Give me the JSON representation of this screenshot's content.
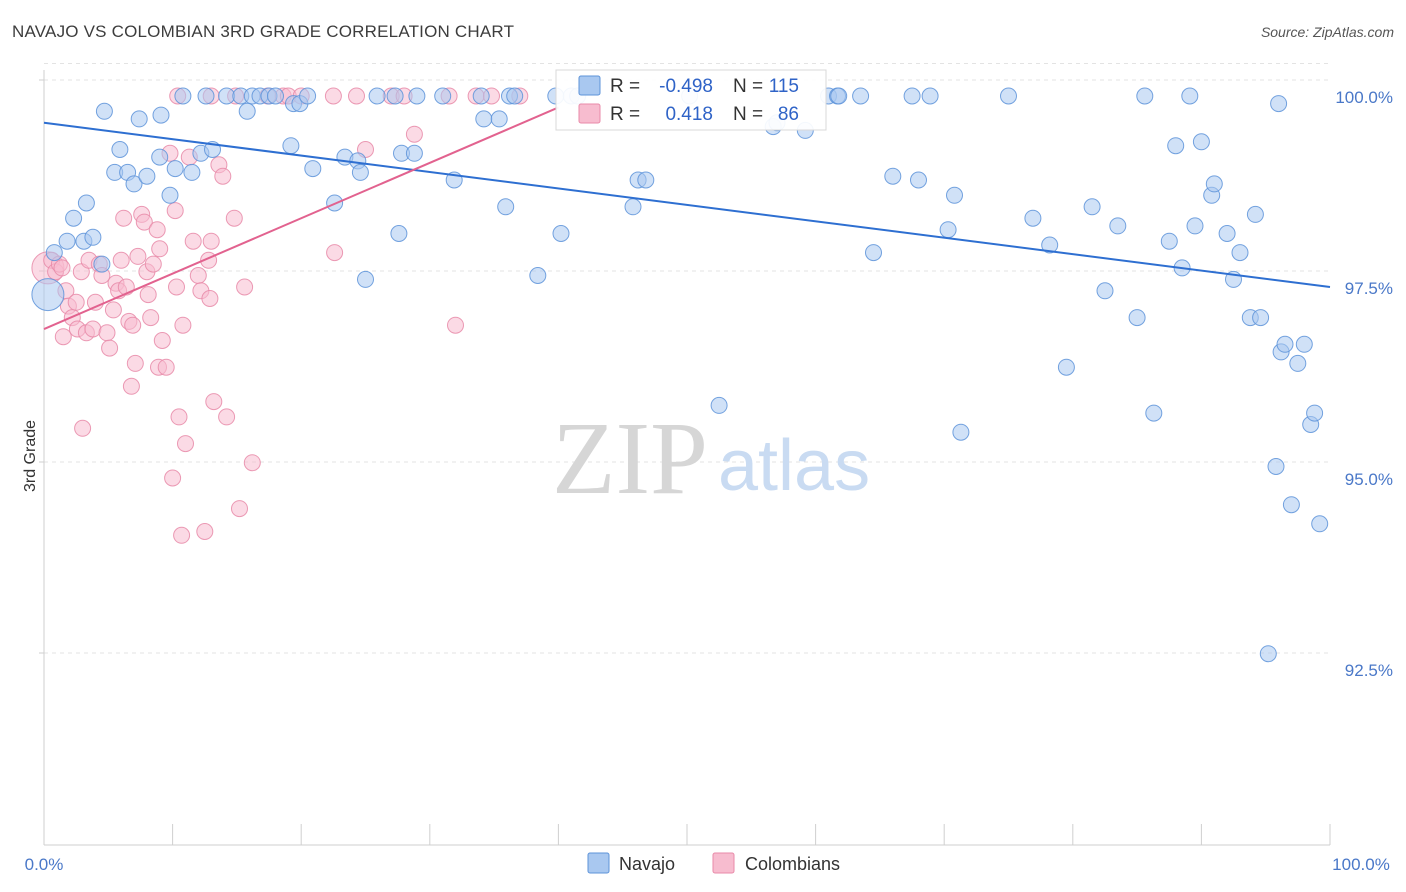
{
  "title": "NAVAJO VS COLOMBIAN 3RD GRADE CORRELATION CHART",
  "source": "Source: ZipAtlas.com",
  "watermark": {
    "zip": "ZIP",
    "atlas": "atlas"
  },
  "legend_box": {
    "rows": [
      {
        "r_label": "R =",
        "r_value": "-0.498",
        "n_label": "N =",
        "n_value": "115",
        "color": "#a9c8f0"
      },
      {
        "r_label": "R =",
        "r_value": "0.418",
        "n_label": "N =",
        "n_value": "86",
        "color": "#f5b3c8"
      }
    ]
  },
  "colors": {
    "navajo_fill": "#a9c8f0",
    "navajo_stroke": "#5d93d9",
    "navajo_line": "#2e6fd1",
    "colombian_fill": "#f7bccf",
    "colombian_stroke": "#e88aa8",
    "colombian_line": "#e2628f",
    "grid": "#e3e3e3",
    "tick_label": "#4a78c8"
  },
  "chart_data": {
    "type": "scatter",
    "title": "NAVAJO VS COLOMBIAN 3RD GRADE CORRELATION CHART",
    "xlabel": "",
    "ylabel": "3rd Grade",
    "xlim": [
      0,
      100
    ],
    "ylim": [
      90.2,
      100.4
    ],
    "y_ticks": [
      92.5,
      95.0,
      97.5,
      100.0
    ],
    "y_tick_labels": [
      "92.5%",
      "95.0%",
      "97.5%",
      "100.0%"
    ],
    "x_tick_labels": [
      "0.0%",
      "100.0%"
    ],
    "legend": [
      "Navajo",
      "Colombians"
    ],
    "series": [
      {
        "name": "Navajo",
        "trend": {
          "x": [
            0,
            100
          ],
          "y": [
            99.65,
            97.5
          ]
        },
        "points": [
          {
            "x": 0.3,
            "y": 97.4,
            "big": true
          },
          {
            "x": 0.8,
            "y": 97.95
          },
          {
            "x": 1.8,
            "y": 98.1
          },
          {
            "x": 2.3,
            "y": 98.4
          },
          {
            "x": 3.1,
            "y": 98.1
          },
          {
            "x": 3.3,
            "y": 98.6
          },
          {
            "x": 3.8,
            "y": 98.15
          },
          {
            "x": 4.5,
            "y": 97.8
          },
          {
            "x": 4.7,
            "y": 99.8
          },
          {
            "x": 5.5,
            "y": 99.0
          },
          {
            "x": 5.9,
            "y": 99.3
          },
          {
            "x": 6.5,
            "y": 99.0
          },
          {
            "x": 7.0,
            "y": 98.85
          },
          {
            "x": 7.4,
            "y": 99.7
          },
          {
            "x": 8.0,
            "y": 98.95
          },
          {
            "x": 9.0,
            "y": 99.2
          },
          {
            "x": 9.1,
            "y": 99.75
          },
          {
            "x": 9.8,
            "y": 98.7
          },
          {
            "x": 10.2,
            "y": 99.05
          },
          {
            "x": 10.8,
            "y": 100.0
          },
          {
            "x": 11.5,
            "y": 99.0
          },
          {
            "x": 12.2,
            "y": 99.25
          },
          {
            "x": 12.6,
            "y": 100.0
          },
          {
            "x": 13.1,
            "y": 99.3
          },
          {
            "x": 14.2,
            "y": 100.0
          },
          {
            "x": 15.3,
            "y": 100.0
          },
          {
            "x": 15.8,
            "y": 99.8
          },
          {
            "x": 16.2,
            "y": 100.0
          },
          {
            "x": 16.8,
            "y": 100.0
          },
          {
            "x": 17.5,
            "y": 100.0
          },
          {
            "x": 18.0,
            "y": 100.0
          },
          {
            "x": 19.2,
            "y": 99.35
          },
          {
            "x": 19.4,
            "y": 99.9
          },
          {
            "x": 19.9,
            "y": 99.9
          },
          {
            "x": 20.5,
            "y": 100.0
          },
          {
            "x": 20.9,
            "y": 99.05
          },
          {
            "x": 22.6,
            "y": 98.6
          },
          {
            "x": 23.4,
            "y": 99.2
          },
          {
            "x": 24.4,
            "y": 99.15
          },
          {
            "x": 24.6,
            "y": 99.0
          },
          {
            "x": 25.0,
            "y": 97.6
          },
          {
            "x": 25.9,
            "y": 100.0
          },
          {
            "x": 27.3,
            "y": 100.0
          },
          {
            "x": 27.6,
            "y": 98.2
          },
          {
            "x": 27.8,
            "y": 99.25
          },
          {
            "x": 28.8,
            "y": 99.25
          },
          {
            "x": 29.0,
            "y": 100.0
          },
          {
            "x": 31.0,
            "y": 100.0
          },
          {
            "x": 31.9,
            "y": 98.9
          },
          {
            "x": 34.0,
            "y": 100.0
          },
          {
            "x": 34.2,
            "y": 99.7
          },
          {
            "x": 35.4,
            "y": 99.7
          },
          {
            "x": 35.9,
            "y": 98.55
          },
          {
            "x": 36.2,
            "y": 100.0
          },
          {
            "x": 36.6,
            "y": 100.0
          },
          {
            "x": 38.4,
            "y": 97.65
          },
          {
            "x": 39.8,
            "y": 100.0
          },
          {
            "x": 40.2,
            "y": 98.2
          },
          {
            "x": 41.0,
            "y": 100.0
          },
          {
            "x": 41.5,
            "y": 100.0
          },
          {
            "x": 45.8,
            "y": 98.55
          },
          {
            "x": 46.2,
            "y": 98.9
          },
          {
            "x": 46.8,
            "y": 98.9
          },
          {
            "x": 50.2,
            "y": 100.0
          },
          {
            "x": 52.5,
            "y": 95.95
          },
          {
            "x": 56.7,
            "y": 99.6
          },
          {
            "x": 57.0,
            "y": 99.65
          },
          {
            "x": 61.0,
            "y": 100.0
          },
          {
            "x": 61.7,
            "y": 100.0
          },
          {
            "x": 61.8,
            "y": 100.0
          },
          {
            "x": 63.5,
            "y": 100.0
          },
          {
            "x": 64.5,
            "y": 97.95
          },
          {
            "x": 66.0,
            "y": 98.95
          },
          {
            "x": 67.5,
            "y": 100.0
          },
          {
            "x": 68.0,
            "y": 98.9
          },
          {
            "x": 68.9,
            "y": 100.0
          },
          {
            "x": 70.3,
            "y": 98.25
          },
          {
            "x": 70.8,
            "y": 98.7
          },
          {
            "x": 71.3,
            "y": 95.6
          },
          {
            "x": 75.0,
            "y": 100.0
          },
          {
            "x": 76.9,
            "y": 98.4
          },
          {
            "x": 78.2,
            "y": 98.05
          },
          {
            "x": 79.5,
            "y": 96.45
          },
          {
            "x": 81.5,
            "y": 98.55
          },
          {
            "x": 82.5,
            "y": 97.45
          },
          {
            "x": 83.5,
            "y": 98.3
          },
          {
            "x": 85.0,
            "y": 97.1
          },
          {
            "x": 85.6,
            "y": 100.0
          },
          {
            "x": 86.3,
            "y": 95.85
          },
          {
            "x": 87.5,
            "y": 98.1
          },
          {
            "x": 88.0,
            "y": 99.35
          },
          {
            "x": 88.5,
            "y": 97.75
          },
          {
            "x": 89.1,
            "y": 100.0
          },
          {
            "x": 89.5,
            "y": 98.3
          },
          {
            "x": 90.0,
            "y": 99.4
          },
          {
            "x": 90.8,
            "y": 98.7
          },
          {
            "x": 91.0,
            "y": 98.85
          },
          {
            "x": 92.0,
            "y": 98.2
          },
          {
            "x": 92.5,
            "y": 97.6
          },
          {
            "x": 93.0,
            "y": 97.95
          },
          {
            "x": 93.8,
            "y": 97.1
          },
          {
            "x": 94.2,
            "y": 98.45
          },
          {
            "x": 94.6,
            "y": 97.1
          },
          {
            "x": 95.2,
            "y": 92.7
          },
          {
            "x": 95.8,
            "y": 95.15
          },
          {
            "x": 96.2,
            "y": 96.65
          },
          {
            "x": 96.5,
            "y": 96.75
          },
          {
            "x": 97.0,
            "y": 94.65
          },
          {
            "x": 97.5,
            "y": 96.5
          },
          {
            "x": 98.5,
            "y": 95.7
          },
          {
            "x": 98.8,
            "y": 95.85
          },
          {
            "x": 99.2,
            "y": 94.4
          },
          {
            "x": 98.0,
            "y": 96.75
          },
          {
            "x": 96.0,
            "y": 99.9
          },
          {
            "x": 59.2,
            "y": 99.55
          }
        ]
      },
      {
        "name": "Colombians",
        "trend": {
          "x": [
            0,
            40
          ],
          "y": [
            96.95,
            99.85
          ]
        },
        "points": [
          {
            "x": 0.3,
            "y": 97.75,
            "big": true
          },
          {
            "x": 0.6,
            "y": 97.85
          },
          {
            "x": 0.9,
            "y": 97.7
          },
          {
            "x": 1.2,
            "y": 97.8
          },
          {
            "x": 1.4,
            "y": 97.75
          },
          {
            "x": 1.5,
            "y": 96.85
          },
          {
            "x": 1.7,
            "y": 97.45
          },
          {
            "x": 1.9,
            "y": 97.25
          },
          {
            "x": 2.2,
            "y": 97.1
          },
          {
            "x": 2.5,
            "y": 97.3
          },
          {
            "x": 2.6,
            "y": 96.95
          },
          {
            "x": 2.9,
            "y": 97.7
          },
          {
            "x": 3.0,
            "y": 95.65
          },
          {
            "x": 3.3,
            "y": 96.9
          },
          {
            "x": 3.5,
            "y": 97.85
          },
          {
            "x": 3.8,
            "y": 96.95
          },
          {
            "x": 4.0,
            "y": 97.3
          },
          {
            "x": 4.3,
            "y": 97.8
          },
          {
            "x": 4.5,
            "y": 97.65
          },
          {
            "x": 4.9,
            "y": 96.9
          },
          {
            "x": 5.1,
            "y": 96.7
          },
          {
            "x": 5.4,
            "y": 97.2
          },
          {
            "x": 5.6,
            "y": 97.55
          },
          {
            "x": 5.8,
            "y": 97.45
          },
          {
            "x": 6.0,
            "y": 97.85
          },
          {
            "x": 6.2,
            "y": 98.4
          },
          {
            "x": 6.4,
            "y": 97.5
          },
          {
            "x": 6.6,
            "y": 97.05
          },
          {
            "x": 6.8,
            "y": 96.2
          },
          {
            "x": 6.9,
            "y": 97.0
          },
          {
            "x": 7.1,
            "y": 96.5
          },
          {
            "x": 7.3,
            "y": 97.9
          },
          {
            "x": 7.6,
            "y": 98.45
          },
          {
            "x": 7.8,
            "y": 98.35
          },
          {
            "x": 8.0,
            "y": 97.7
          },
          {
            "x": 8.1,
            "y": 97.4
          },
          {
            "x": 8.3,
            "y": 97.1
          },
          {
            "x": 8.5,
            "y": 97.8
          },
          {
            "x": 8.8,
            "y": 98.25
          },
          {
            "x": 8.9,
            "y": 96.45
          },
          {
            "x": 9.0,
            "y": 98.0
          },
          {
            "x": 9.2,
            "y": 96.8
          },
          {
            "x": 9.5,
            "y": 96.45
          },
          {
            "x": 9.8,
            "y": 99.25
          },
          {
            "x": 10.0,
            "y": 95.0
          },
          {
            "x": 10.2,
            "y": 98.5
          },
          {
            "x": 10.3,
            "y": 97.5
          },
          {
            "x": 10.5,
            "y": 95.8
          },
          {
            "x": 10.7,
            "y": 94.25
          },
          {
            "x": 10.8,
            "y": 97.0
          },
          {
            "x": 11.0,
            "y": 95.45
          },
          {
            "x": 11.3,
            "y": 99.2
          },
          {
            "x": 11.6,
            "y": 98.1
          },
          {
            "x": 12.0,
            "y": 97.65
          },
          {
            "x": 12.2,
            "y": 97.45
          },
          {
            "x": 12.5,
            "y": 94.3
          },
          {
            "x": 12.8,
            "y": 97.85
          },
          {
            "x": 12.9,
            "y": 97.35
          },
          {
            "x": 13.0,
            "y": 98.1
          },
          {
            "x": 13.2,
            "y": 96.0
          },
          {
            "x": 13.6,
            "y": 99.1
          },
          {
            "x": 13.9,
            "y": 98.95
          },
          {
            "x": 14.2,
            "y": 95.8
          },
          {
            "x": 14.8,
            "y": 98.4
          },
          {
            "x": 15.2,
            "y": 94.6
          },
          {
            "x": 15.6,
            "y": 97.5
          },
          {
            "x": 16.2,
            "y": 95.2
          },
          {
            "x": 14.9,
            "y": 100.0
          },
          {
            "x": 17.4,
            "y": 100.0
          },
          {
            "x": 18.6,
            "y": 100.0
          },
          {
            "x": 19.0,
            "y": 100.0
          },
          {
            "x": 20.0,
            "y": 100.0
          },
          {
            "x": 22.5,
            "y": 100.0
          },
          {
            "x": 24.3,
            "y": 100.0
          },
          {
            "x": 25.0,
            "y": 99.3
          },
          {
            "x": 27.0,
            "y": 100.0
          },
          {
            "x": 28.0,
            "y": 100.0
          },
          {
            "x": 28.8,
            "y": 99.5
          },
          {
            "x": 31.5,
            "y": 100.0
          },
          {
            "x": 32.0,
            "y": 97.0
          },
          {
            "x": 33.6,
            "y": 100.0
          },
          {
            "x": 34.8,
            "y": 100.0
          },
          {
            "x": 37.0,
            "y": 100.0
          },
          {
            "x": 22.6,
            "y": 97.95
          },
          {
            "x": 10.4,
            "y": 100.0
          },
          {
            "x": 13.0,
            "y": 100.0
          }
        ]
      }
    ]
  }
}
